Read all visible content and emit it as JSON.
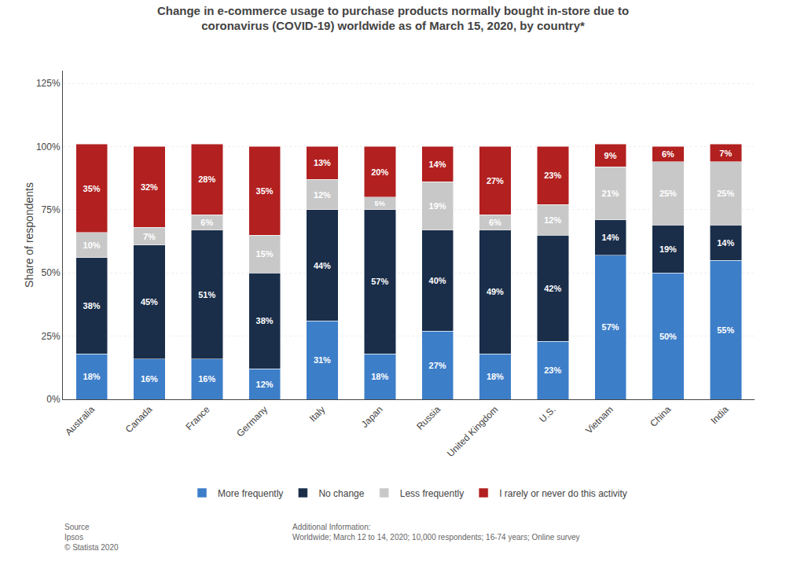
{
  "chart_data": {
    "type": "bar",
    "stacked": true,
    "title": "Change in e-commerce usage to purchase products normally bought in-store due to\ncoronavirus (COVID-19) worldwide as of March 15, 2020, by country*",
    "ylabel": "Share of respondents",
    "categories": [
      "Australia",
      "Canada",
      "France",
      "Germany",
      "Italy",
      "Japan",
      "Russia",
      "United Kingdom",
      "U.S.",
      "Vietnam",
      "China",
      "India"
    ],
    "series": [
      {
        "name": "More frequently",
        "color": "#3d7ec9",
        "values": [
          18,
          16,
          16,
          12,
          31,
          18,
          27,
          18,
          23,
          57,
          50,
          55
        ],
        "value_labels": [
          "18%",
          "16%",
          "16%",
          "12%",
          "31%",
          "18%",
          "27%",
          "18%",
          "23%",
          "57%",
          "50%",
          "55%"
        ]
      },
      {
        "name": "No change",
        "color": "#1a2e4a",
        "values": [
          38,
          45,
          51,
          38,
          44,
          57,
          40,
          49,
          42,
          14,
          19,
          14
        ],
        "value_labels": [
          "38%",
          "45%",
          "51%",
          "38%",
          "44%",
          "57%",
          "40%",
          "49%",
          "42%",
          "14%",
          "19%",
          "14%"
        ]
      },
      {
        "name": "Less frequently",
        "color": "#c8c8c8",
        "values": [
          10,
          7,
          6,
          15,
          12,
          5,
          19,
          6,
          12,
          21,
          25,
          25
        ],
        "value_labels": [
          "10%",
          "7%",
          "6%",
          "15%",
          "12%",
          "5%",
          "19%",
          "6%",
          "12%",
          "21%",
          "25%",
          "25%"
        ]
      },
      {
        "name": "I rarely or never do this activity",
        "color": "#b22020",
        "values": [
          35,
          32,
          28,
          35,
          13,
          20,
          14,
          27,
          23,
          9,
          6,
          7
        ],
        "value_labels": [
          "35%",
          "32%",
          "28%",
          "35%",
          "13%",
          "20%",
          "14%",
          "27%",
          "23%",
          "9%",
          "6%",
          "7%"
        ]
      }
    ],
    "ylim": [
      0,
      130
    ],
    "yticks": [
      {
        "value": 0,
        "label": "0%"
      },
      {
        "value": 25,
        "label": "25%"
      },
      {
        "value": 50,
        "label": "50%"
      },
      {
        "value": 75,
        "label": "75%"
      },
      {
        "value": 100,
        "label": "100%"
      },
      {
        "value": 125,
        "label": "125%"
      }
    ],
    "grid": true,
    "legend": "bottom",
    "data_labels": true,
    "annotations": [
      "Source\nIpsos\n© Statista 2020",
      "Additional Information:\nWorldwide; March 12 to 14, 2020; 10,000 respondents; 16-74 years; Online survey"
    ]
  }
}
